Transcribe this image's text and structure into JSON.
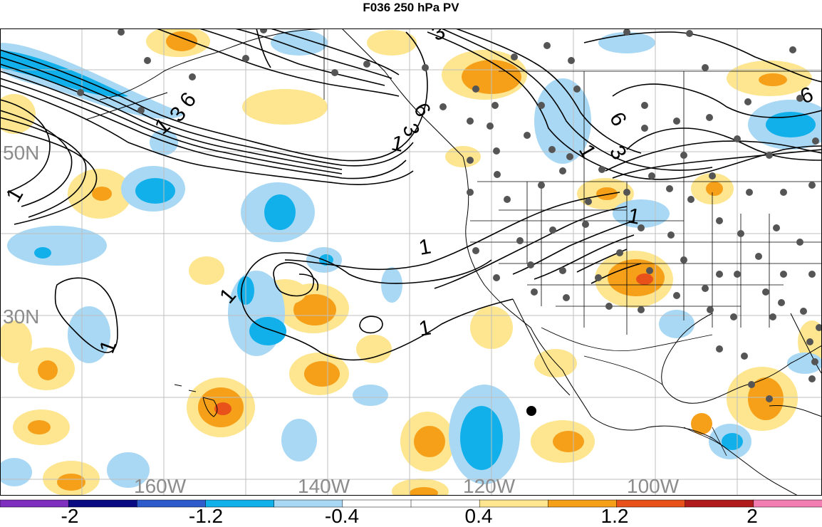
{
  "title": "F036 250 hPa PV",
  "map": {
    "lat_labels": [
      "50N",
      "30N"
    ],
    "lon_labels": [
      "160W",
      "140W",
      "120W",
      "100W"
    ],
    "contour_labels": [
      "1",
      "3",
      "6"
    ],
    "label_color": "#8c8c8c",
    "contour_color": "#000000",
    "station_color": "#555555"
  },
  "colorbar": {
    "bins": [
      {
        "color": "#7f2fbf"
      },
      {
        "color": "#0a0a82"
      },
      {
        "color": "#2e5bcc"
      },
      {
        "color": "#11b0ea"
      },
      {
        "color": "#a8d8f4"
      },
      {
        "color": "#ffffff"
      },
      {
        "color": "#ffffff"
      },
      {
        "color": "#fde68f"
      },
      {
        "color": "#f6a01a"
      },
      {
        "color": "#e8521a"
      },
      {
        "color": "#b01c1c"
      },
      {
        "color": "#f37fb2"
      }
    ],
    "ticks": [
      "-2",
      "-1.2",
      "-0.4",
      "0.4",
      "1.2",
      "2"
    ]
  }
}
